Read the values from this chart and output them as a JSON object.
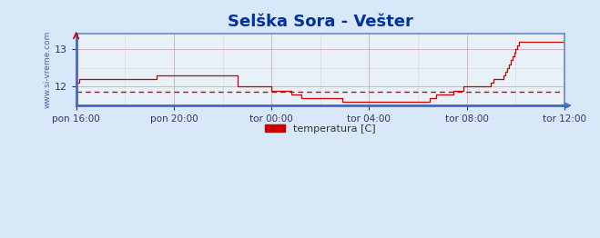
{
  "title": "Selška Sora - Vešter",
  "title_color": "#003399",
  "title_fontsize": 13,
  "bg_color": "#d8e8f8",
  "plot_bg_color": "#e8f0f8",
  "line_color": "#cc0000",
  "avg_line_color": "#cc0000",
  "avg_line_value": 11.87,
  "ylabel_text": "www.si-vreme.com",
  "ylabel_color": "#4466aa",
  "xlabel_labels": [
    "pon 16:00",
    "pon 20:00",
    "tor 00:00",
    "tor 04:00",
    "tor 08:00",
    "tor 12:00"
  ],
  "xlabel_color": "#333366",
  "tick_color": "#333366",
  "grid_color": "#cc9999",
  "grid_minor_color": "#ddbbbb",
  "border_color": "#6688cc",
  "ylim": [
    11.5,
    13.4
  ],
  "yticks": [
    12,
    13
  ],
  "legend_label": "temperatura [C]",
  "legend_color": "#cc0000",
  "temp_data": [
    12.1,
    12.1,
    12.2,
    12.2,
    12.2,
    12.2,
    12.2,
    12.2,
    12.2,
    12.2,
    12.2,
    12.2,
    12.2,
    12.2,
    12.2,
    12.2,
    12.2,
    12.2,
    12.2,
    12.2,
    12.2,
    12.2,
    12.2,
    12.2,
    12.2,
    12.2,
    12.2,
    12.2,
    12.2,
    12.2,
    12.2,
    12.2,
    12.2,
    12.2,
    12.2,
    12.2,
    12.2,
    12.2,
    12.2,
    12.2,
    12.2,
    12.2,
    12.2,
    12.2,
    12.2,
    12.2,
    12.2,
    12.2,
    12.3,
    12.3,
    12.3,
    12.3,
    12.3,
    12.3,
    12.3,
    12.3,
    12.3,
    12.3,
    12.3,
    12.3,
    12.3,
    12.3,
    12.3,
    12.3,
    12.3,
    12.3,
    12.3,
    12.3,
    12.3,
    12.3,
    12.3,
    12.3,
    12.3,
    12.3,
    12.3,
    12.3,
    12.3,
    12.3,
    12.3,
    12.3,
    12.3,
    12.3,
    12.3,
    12.3,
    12.3,
    12.3,
    12.3,
    12.3,
    12.3,
    12.3,
    12.3,
    12.3,
    12.3,
    12.3,
    12.3,
    12.3,
    12.0,
    12.0,
    12.0,
    12.0,
    12.0,
    12.0,
    12.0,
    12.0,
    12.0,
    12.0,
    12.0,
    12.0,
    12.0,
    12.0,
    12.0,
    12.0,
    12.0,
    12.0,
    12.0,
    12.0,
    11.9,
    11.9,
    11.9,
    11.9,
    11.9,
    11.9,
    11.9,
    11.9,
    11.9,
    11.9,
    11.9,
    11.9,
    11.8,
    11.8,
    11.8,
    11.8,
    11.8,
    11.8,
    11.7,
    11.7,
    11.7,
    11.7,
    11.7,
    11.7,
    11.7,
    11.7,
    11.7,
    11.7,
    11.7,
    11.7,
    11.7,
    11.7,
    11.7,
    11.7,
    11.7,
    11.7,
    11.7,
    11.7,
    11.7,
    11.7,
    11.7,
    11.7,
    11.6,
    11.6,
    11.6,
    11.6,
    11.6,
    11.6,
    11.6,
    11.6,
    11.6,
    11.6,
    11.6,
    11.6,
    11.6,
    11.6,
    11.6,
    11.6,
    11.6,
    11.6,
    11.6,
    11.6,
    11.6,
    11.6,
    11.6,
    11.6,
    11.6,
    11.6,
    11.6,
    11.6,
    11.6,
    11.6,
    11.6,
    11.6,
    11.6,
    11.6,
    11.6,
    11.6,
    11.6,
    11.6,
    11.6,
    11.6,
    11.6,
    11.6,
    11.6,
    11.6,
    11.6,
    11.6,
    11.6,
    11.6,
    11.6,
    11.6,
    11.6,
    11.6,
    11.7,
    11.7,
    11.7,
    11.7,
    11.8,
    11.8,
    11.8,
    11.8,
    11.8,
    11.8,
    11.8,
    11.8,
    11.8,
    11.8,
    11.9,
    11.9,
    11.9,
    11.9,
    11.9,
    11.9,
    12.0,
    12.0,
    12.0,
    12.0,
    12.0,
    12.0,
    12.0,
    12.0,
    12.0,
    12.0,
    12.0,
    12.0,
    12.0,
    12.0,
    12.0,
    12.0,
    12.1,
    12.1,
    12.2,
    12.2,
    12.2,
    12.2,
    12.2,
    12.2,
    12.3,
    12.4,
    12.5,
    12.6,
    12.7,
    12.8,
    12.9,
    13.0,
    13.1,
    13.2,
    13.2,
    13.2,
    13.2,
    13.2,
    13.2,
    13.2,
    13.2,
    13.2,
    13.2,
    13.2,
    13.2,
    13.2,
    13.2,
    13.2,
    13.2,
    13.2,
    13.2,
    13.2,
    13.2,
    13.2,
    13.2,
    13.2,
    13.2,
    13.2,
    13.2,
    13.2,
    13.35
  ]
}
